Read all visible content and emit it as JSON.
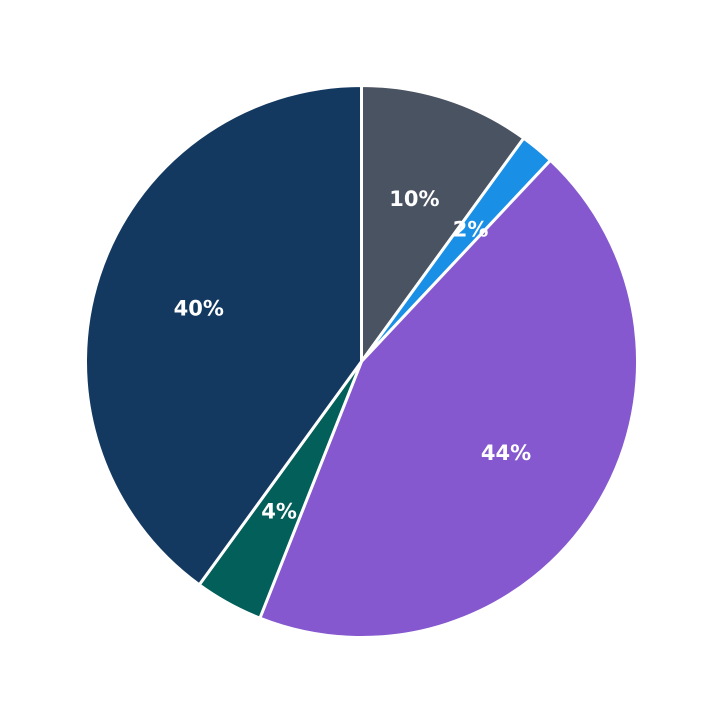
{
  "chart_data": {
    "type": "pie",
    "title": "",
    "start_angle_deg": 90,
    "direction": "clockwise",
    "slices": [
      {
        "value": 10,
        "label": "10%",
        "color": "#4a5361"
      },
      {
        "value": 2,
        "label": "2%",
        "color": "#1a8fe6"
      },
      {
        "value": 44,
        "label": "44%",
        "color": "#8558cf"
      },
      {
        "value": 4,
        "label": "4%",
        "color": "#035f59"
      },
      {
        "value": 40,
        "label": "40%",
        "color": "#143961"
      }
    ]
  }
}
